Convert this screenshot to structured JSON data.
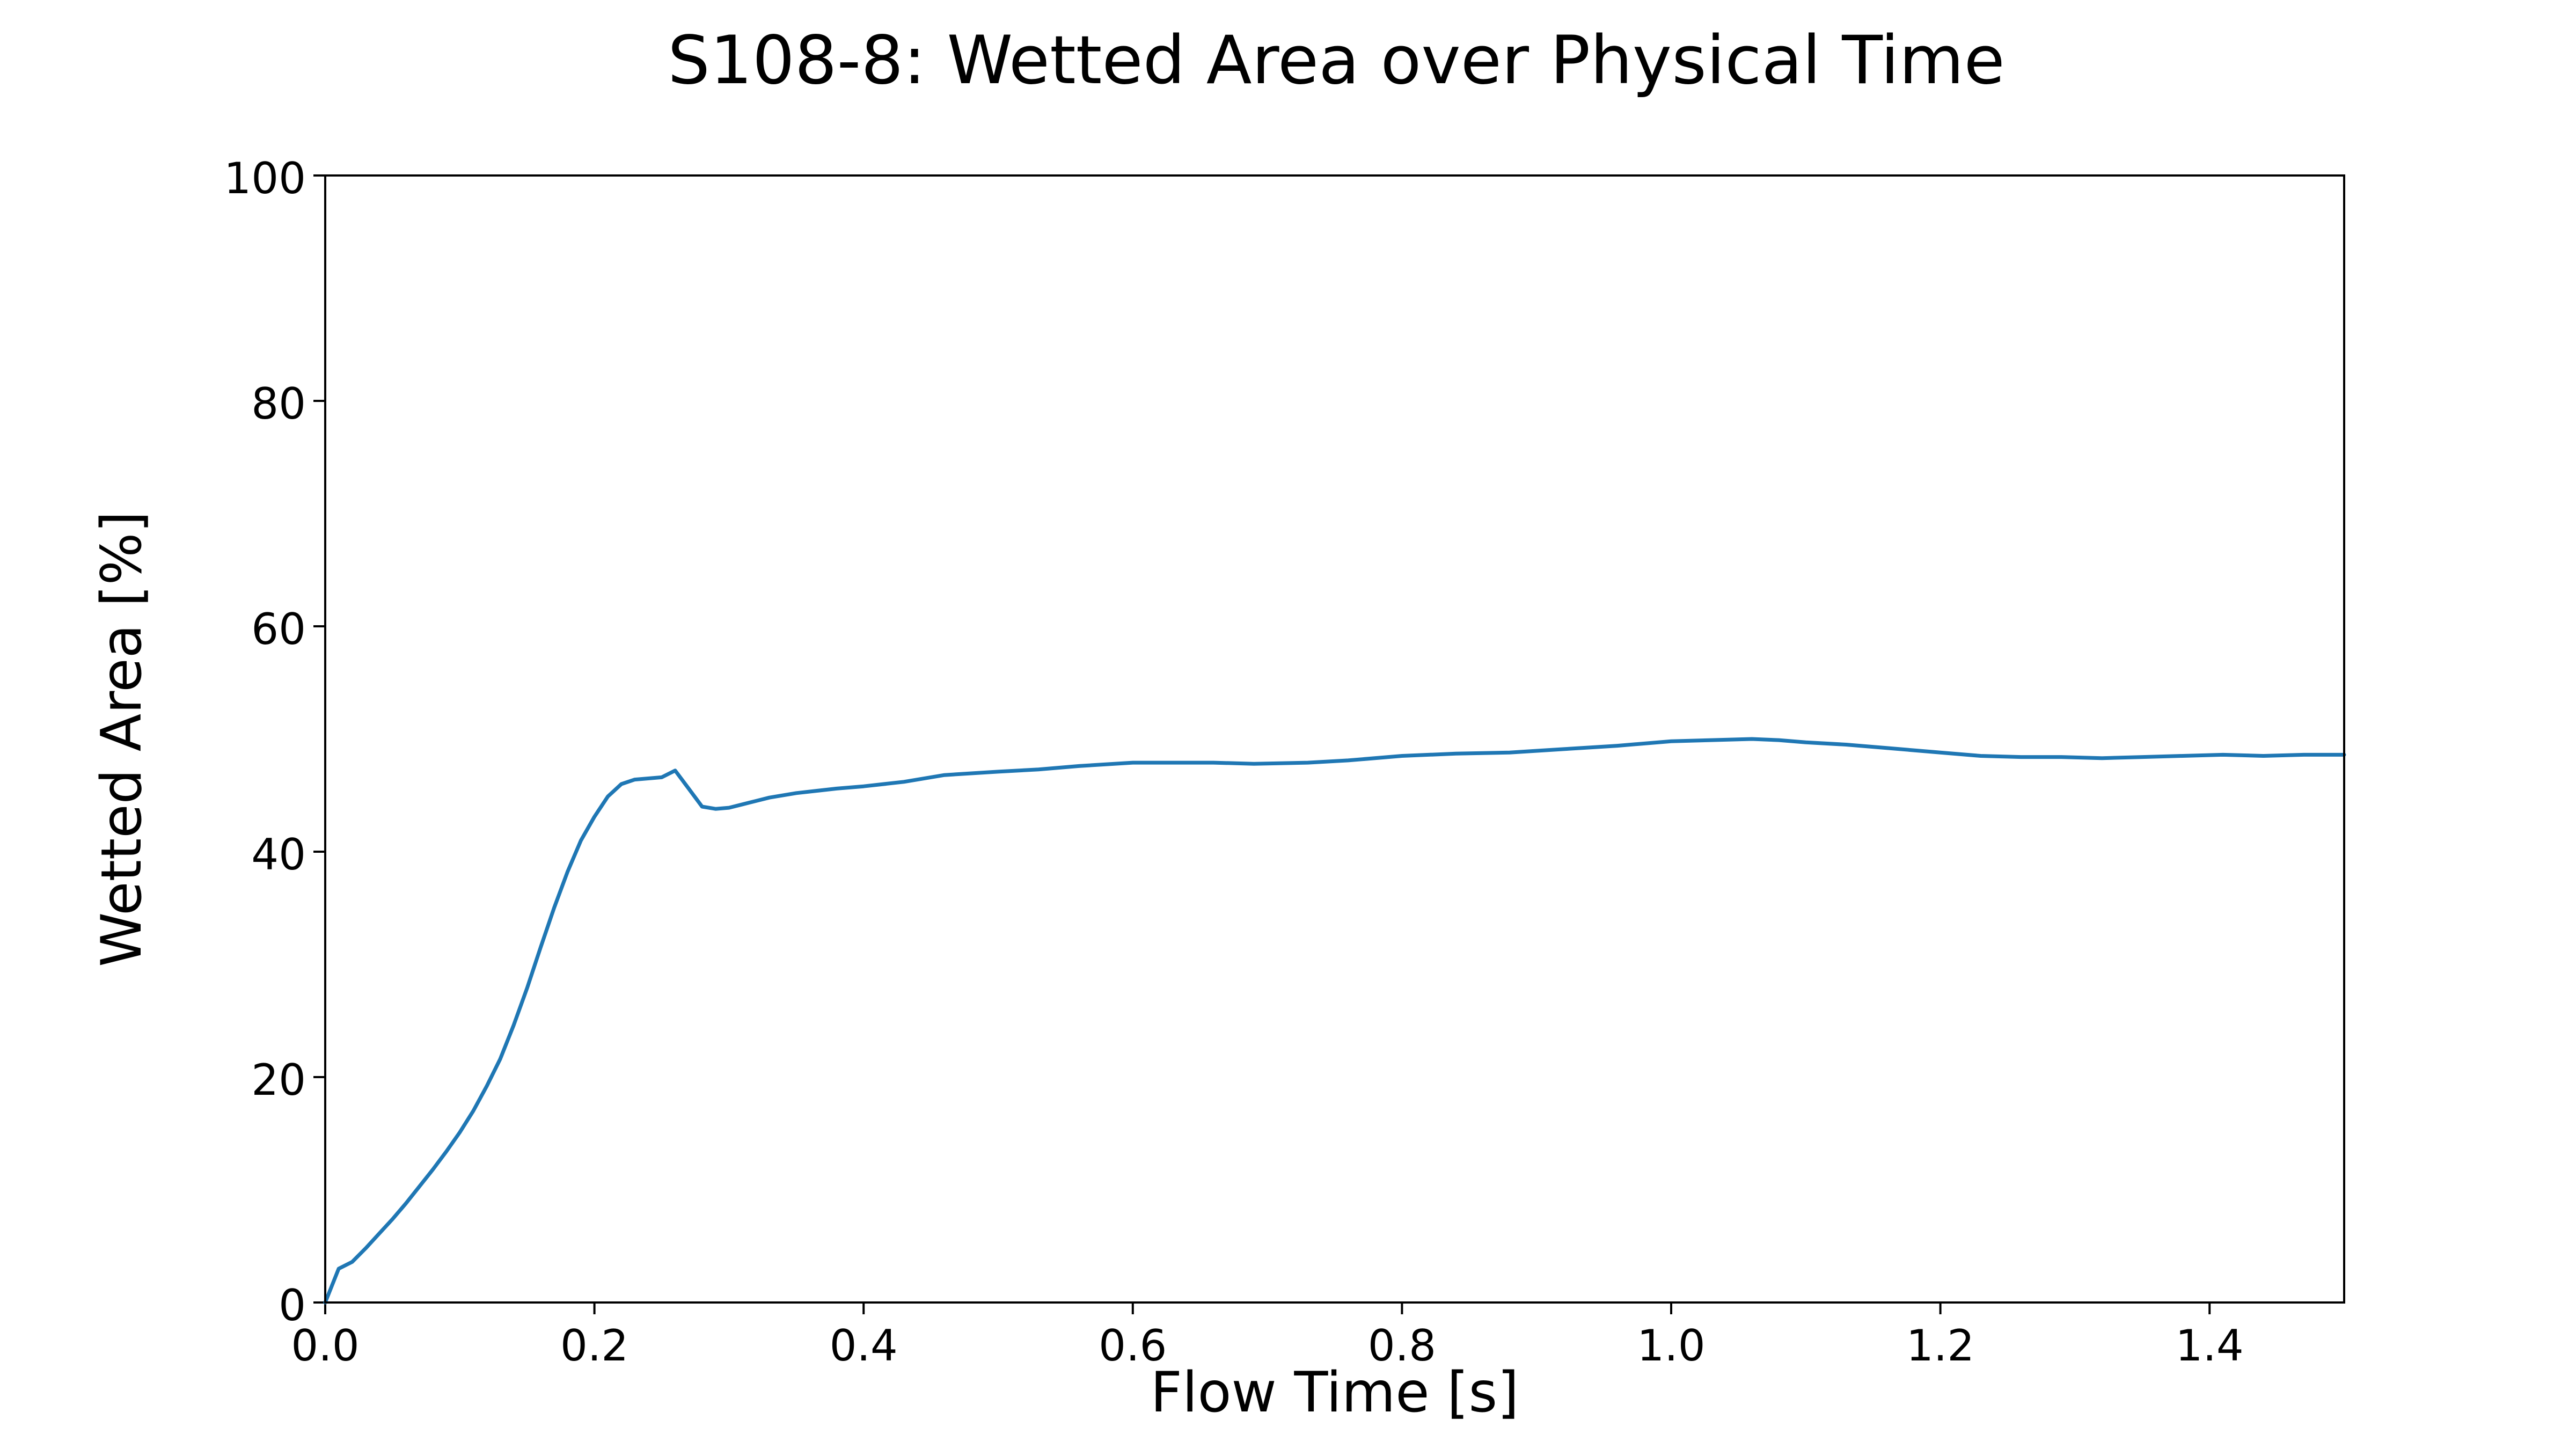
{
  "chart_data": {
    "type": "line",
    "title": "S108-8: Wetted Area over Physical Time",
    "xlabel": "Flow Time [s]",
    "ylabel": "Wetted Area [%]",
    "xlim": [
      0.0,
      1.5
    ],
    "ylim": [
      0,
      100
    ],
    "xticks": [
      0.0,
      0.2,
      0.4,
      0.6,
      0.8,
      1.0,
      1.2,
      1.4
    ],
    "xtick_labels": [
      "0.0",
      "0.2",
      "0.4",
      "0.6",
      "0.8",
      "1.0",
      "1.2",
      "1.4"
    ],
    "yticks": [
      0,
      20,
      40,
      60,
      80,
      100
    ],
    "ytick_labels": [
      "0",
      "20",
      "40",
      "60",
      "80",
      "100"
    ],
    "grid": false,
    "legend": false,
    "series": [
      {
        "color": "#1f77b4",
        "x": [
          0.0,
          0.01,
          0.02,
          0.03,
          0.04,
          0.05,
          0.06,
          0.07,
          0.08,
          0.09,
          0.1,
          0.11,
          0.12,
          0.13,
          0.14,
          0.15,
          0.16,
          0.17,
          0.18,
          0.19,
          0.2,
          0.21,
          0.22,
          0.23,
          0.24,
          0.25,
          0.26,
          0.27,
          0.28,
          0.29,
          0.3,
          0.31,
          0.32,
          0.33,
          0.35,
          0.38,
          0.4,
          0.43,
          0.46,
          0.5,
          0.53,
          0.56,
          0.6,
          0.63,
          0.66,
          0.69,
          0.73,
          0.76,
          0.8,
          0.84,
          0.88,
          0.92,
          0.96,
          1.0,
          1.03,
          1.06,
          1.08,
          1.1,
          1.13,
          1.16,
          1.2,
          1.23,
          1.26,
          1.29,
          1.32,
          1.35,
          1.38,
          1.41,
          1.44,
          1.47,
          1.5
        ],
        "y": [
          0.0,
          3.0,
          3.6,
          4.8,
          6.1,
          7.4,
          8.8,
          10.3,
          11.8,
          13.4,
          15.1,
          17.0,
          19.2,
          21.6,
          24.6,
          27.9,
          31.5,
          35.0,
          38.2,
          41.0,
          43.1,
          44.9,
          46.0,
          46.4,
          46.5,
          46.6,
          47.2,
          45.6,
          44.0,
          43.8,
          43.9,
          44.2,
          44.5,
          44.8,
          45.2,
          45.6,
          45.8,
          46.2,
          46.8,
          47.1,
          47.3,
          47.6,
          47.9,
          47.9,
          47.9,
          47.8,
          47.9,
          48.1,
          48.5,
          48.7,
          48.8,
          49.1,
          49.4,
          49.8,
          49.9,
          50.0,
          49.9,
          49.7,
          49.5,
          49.2,
          48.8,
          48.5,
          48.4,
          48.4,
          48.3,
          48.4,
          48.5,
          48.6,
          48.5,
          48.6,
          48.6
        ]
      }
    ]
  }
}
